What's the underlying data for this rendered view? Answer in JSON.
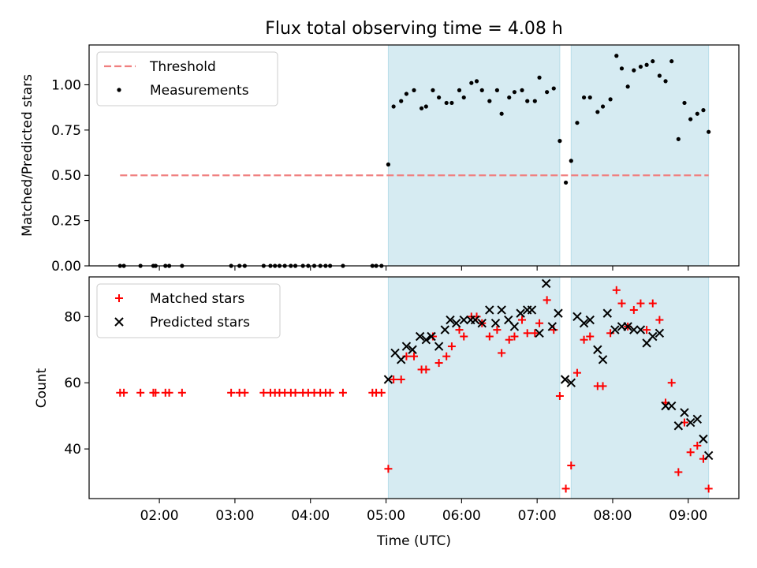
{
  "title": "Flux total observing time = 4.08 h",
  "colors": {
    "threshold": "#f08080",
    "measurements": "#000000",
    "matched": "#ff0000",
    "predicted": "#000000",
    "span": "#add8e6"
  },
  "chart_data": [
    {
      "type": "scatter",
      "title": "Flux total observing time = 4.08 h",
      "ylabel": "Matched/Predicted stars",
      "xlabel": "",
      "x_unit": "hours UTC",
      "xlim": [
        1.07,
        9.67
      ],
      "ylim": [
        0,
        1.22
      ],
      "y_ticks": [
        "0.00",
        "0.25",
        "0.50",
        "0.75",
        "1.00"
      ],
      "x_ticks": [
        "02:00",
        "03:00",
        "04:00",
        "05:00",
        "06:00",
        "07:00",
        "08:00",
        "09:00"
      ],
      "legend_position": "upper-left",
      "shaded_spans": [
        [
          5.03,
          7.3
        ],
        [
          7.45,
          9.27
        ]
      ],
      "threshold": {
        "name": "Threshold",
        "value": 0.5,
        "x_range": [
          1.48,
          9.27
        ]
      },
      "series": [
        {
          "name": "Measurements",
          "marker": "dot",
          "x": [
            1.48,
            1.53,
            1.75,
            1.92,
            1.95,
            2.08,
            2.13,
            2.3,
            2.95,
            3.06,
            3.13,
            3.38,
            3.47,
            3.53,
            3.59,
            3.66,
            3.74,
            3.8,
            3.9,
            3.97,
            4.05,
            4.13,
            4.2,
            4.26,
            4.43,
            4.82,
            4.87,
            4.94,
            5.03,
            5.1,
            5.2,
            5.27,
            5.37,
            5.47,
            5.53,
            5.62,
            5.7,
            5.8,
            5.87,
            5.97,
            6.03,
            6.13,
            6.2,
            6.27,
            6.37,
            6.47,
            6.53,
            6.63,
            6.7,
            6.8,
            6.87,
            6.97,
            7.03,
            7.13,
            7.22,
            7.3,
            7.38,
            7.45,
            7.53,
            7.62,
            7.7,
            7.8,
            7.87,
            7.97,
            8.05,
            8.12,
            8.2,
            8.28,
            8.37,
            8.45,
            8.53,
            8.62,
            8.7,
            8.78,
            8.87,
            8.95,
            9.03,
            9.12,
            9.2,
            9.27
          ],
          "y": [
            0,
            0,
            0,
            0,
            0,
            0,
            0,
            0,
            0,
            0,
            0,
            0,
            0,
            0,
            0,
            0,
            0,
            0,
            0,
            0,
            0,
            0,
            0,
            0,
            0,
            0,
            0,
            0,
            0.56,
            0.88,
            0.91,
            0.95,
            0.97,
            0.87,
            0.88,
            0.97,
            0.93,
            0.9,
            0.9,
            0.97,
            0.93,
            1.01,
            1.02,
            0.97,
            0.91,
            0.97,
            0.84,
            0.93,
            0.96,
            0.97,
            0.91,
            0.91,
            1.04,
            0.96,
            0.98,
            0.69,
            0.46,
            0.58,
            0.79,
            0.93,
            0.93,
            0.85,
            0.88,
            0.92,
            1.16,
            1.09,
            0.99,
            1.08,
            1.1,
            1.11,
            1.13,
            1.05,
            1.02,
            1.13,
            0.7,
            0.9,
            0.81,
            0.84,
            0.86,
            0.74
          ]
        }
      ]
    },
    {
      "type": "scatter",
      "title": "",
      "ylabel": "Count",
      "xlabel": "Time (UTC)",
      "x_unit": "hours UTC",
      "xlim": [
        1.07,
        9.67
      ],
      "ylim": [
        25,
        92
      ],
      "y_ticks": [
        "40",
        "60",
        "80"
      ],
      "x_ticks": [
        "02:00",
        "03:00",
        "04:00",
        "05:00",
        "06:00",
        "07:00",
        "08:00",
        "09:00"
      ],
      "legend_position": "upper-left",
      "shaded_spans": [
        [
          5.03,
          7.3
        ],
        [
          7.45,
          9.27
        ]
      ],
      "series": [
        {
          "name": "Matched stars",
          "marker": "plus",
          "x": [
            1.48,
            1.53,
            1.75,
            1.92,
            1.95,
            2.08,
            2.13,
            2.3,
            2.95,
            3.06,
            3.13,
            3.38,
            3.47,
            3.53,
            3.59,
            3.66,
            3.74,
            3.8,
            3.9,
            3.97,
            4.05,
            4.13,
            4.2,
            4.26,
            4.43,
            4.82,
            4.87,
            4.94,
            5.03,
            5.1,
            5.2,
            5.27,
            5.37,
            5.47,
            5.53,
            5.62,
            5.7,
            5.8,
            5.87,
            5.97,
            6.03,
            6.13,
            6.2,
            6.27,
            6.37,
            6.47,
            6.53,
            6.63,
            6.7,
            6.8,
            6.87,
            6.97,
            7.03,
            7.13,
            7.22,
            7.3,
            7.38,
            7.45,
            7.53,
            7.62,
            7.7,
            7.8,
            7.87,
            7.97,
            8.05,
            8.12,
            8.2,
            8.28,
            8.37,
            8.45,
            8.53,
            8.62,
            8.7,
            8.78,
            8.87,
            8.95,
            9.03,
            9.12,
            9.2,
            9.27
          ],
          "y": [
            57,
            57,
            57,
            57,
            57,
            57,
            57,
            57,
            57,
            57,
            57,
            57,
            57,
            57,
            57,
            57,
            57,
            57,
            57,
            57,
            57,
            57,
            57,
            57,
            57,
            57,
            57,
            57,
            34,
            61,
            61,
            68,
            68,
            64,
            64,
            74,
            66,
            68,
            71,
            76,
            74,
            80,
            80,
            78,
            74,
            76,
            69,
            73,
            74,
            79,
            75,
            75,
            78,
            85,
            76,
            56,
            28,
            35,
            63,
            73,
            74,
            59,
            59,
            75,
            88,
            84,
            77,
            82,
            84,
            76,
            84,
            79,
            54,
            60,
            33,
            48,
            39,
            41,
            37,
            28
          ]
        },
        {
          "name": "Predicted stars",
          "marker": "x",
          "x": [
            5.03,
            5.12,
            5.2,
            5.27,
            5.35,
            5.45,
            5.53,
            5.6,
            5.7,
            5.78,
            5.85,
            5.93,
            6.03,
            6.12,
            6.18,
            6.27,
            6.37,
            6.45,
            6.53,
            6.62,
            6.7,
            6.78,
            6.87,
            6.93,
            7.03,
            7.12,
            7.2,
            7.28,
            7.37,
            7.45,
            7.53,
            7.62,
            7.7,
            7.8,
            7.87,
            7.93,
            8.03,
            8.12,
            8.2,
            8.28,
            8.37,
            8.45,
            8.53,
            8.62,
            8.7,
            8.78,
            8.87,
            8.95,
            9.03,
            9.12,
            9.2,
            9.27
          ],
          "y": [
            61,
            69,
            67,
            71,
            70,
            74,
            73,
            74,
            71,
            76,
            79,
            78,
            79,
            79,
            79,
            78,
            82,
            78,
            82,
            79,
            77,
            81,
            82,
            82,
            75,
            90,
            77,
            81,
            61,
            60,
            80,
            78,
            79,
            70,
            67,
            81,
            76,
            77,
            77,
            76,
            76,
            72,
            74,
            75,
            53,
            53,
            47,
            51,
            48,
            49,
            43,
            38
          ]
        }
      ]
    }
  ]
}
